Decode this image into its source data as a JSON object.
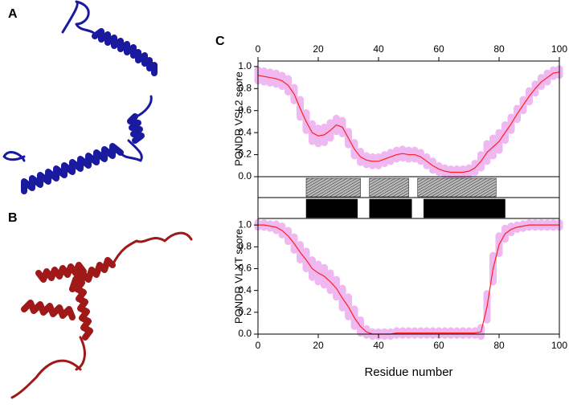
{
  "panel_labels": [
    "A",
    "B",
    "C"
  ],
  "chart_data": [
    {
      "type": "line",
      "ylabel": "PONDR VSL2 score",
      "xaxis": "top",
      "xlim": [
        0,
        100
      ],
      "ylim": [
        0,
        1.05
      ],
      "xticks": [
        0,
        20,
        40,
        60,
        80,
        100
      ],
      "yticks": [
        {
          "value": 0,
          "label": "0.0"
        },
        0.2,
        0.4,
        0.6,
        0.8,
        {
          "value": 1,
          "label": "1.0"
        }
      ],
      "color": "#ff2020",
      "band_color": "#f0b8f0",
      "x": [
        0,
        2,
        4,
        6,
        8,
        10,
        12,
        14,
        16,
        18,
        20,
        22,
        24,
        26,
        28,
        30,
        32,
        34,
        36,
        38,
        40,
        42,
        44,
        46,
        48,
        50,
        52,
        54,
        56,
        58,
        60,
        62,
        64,
        66,
        68,
        70,
        72,
        74,
        76,
        78,
        80,
        82,
        84,
        86,
        88,
        90,
        92,
        94,
        96,
        98,
        100
      ],
      "values": [
        0.92,
        0.91,
        0.9,
        0.89,
        0.87,
        0.83,
        0.75,
        0.62,
        0.5,
        0.4,
        0.37,
        0.38,
        0.42,
        0.47,
        0.45,
        0.35,
        0.25,
        0.18,
        0.15,
        0.14,
        0.14,
        0.16,
        0.18,
        0.2,
        0.21,
        0.2,
        0.2,
        0.18,
        0.14,
        0.1,
        0.07,
        0.05,
        0.04,
        0.04,
        0.04,
        0.05,
        0.08,
        0.14,
        0.22,
        0.27,
        0.32,
        0.4,
        0.48,
        0.57,
        0.65,
        0.73,
        0.8,
        0.86,
        0.9,
        0.94,
        0.95
      ],
      "errors": [
        0.05,
        0.05,
        0.05,
        0.05,
        0.05,
        0.06,
        0.06,
        0.08,
        0.08,
        0.08,
        0.07,
        0.07,
        0.07,
        0.06,
        0.06,
        0.06,
        0.06,
        0.05,
        0.04,
        0.04,
        0.04,
        0.04,
        0.04,
        0.04,
        0.04,
        0.04,
        0.04,
        0.04,
        0.04,
        0.04,
        0.03,
        0.03,
        0.03,
        0.03,
        0.03,
        0.03,
        0.04,
        0.06,
        0.08,
        0.08,
        0.08,
        0.07,
        0.06,
        0.05,
        0.05,
        0.05,
        0.04,
        0.04,
        0.04,
        0.03,
        0.03
      ]
    },
    {
      "type": "segments",
      "xlim": [
        0,
        100
      ],
      "rows": [
        {
          "fill": "hatched",
          "ranges": [
            [
              16,
              34
            ],
            [
              37,
              50
            ],
            [
              53,
              79
            ]
          ]
        },
        {
          "fill": "#000000",
          "ranges": [
            [
              16,
              33
            ],
            [
              37,
              51
            ],
            [
              55,
              82
            ]
          ]
        }
      ]
    },
    {
      "type": "line",
      "ylabel": "PONDR VLXT score",
      "xlabel": "Residue number",
      "xaxis": "bottom",
      "xlim": [
        0,
        100
      ],
      "ylim": [
        0,
        1.06
      ],
      "xticks": [
        0,
        20,
        40,
        60,
        80,
        100
      ],
      "yticks": [
        {
          "value": 0,
          "label": "0.0"
        },
        0.2,
        0.4,
        0.6,
        0.8,
        {
          "value": 1,
          "label": "1.0"
        }
      ],
      "color": "#ff2020",
      "band_color": "#f0b8f0",
      "x": [
        0,
        2,
        4,
        6,
        8,
        10,
        12,
        14,
        16,
        18,
        20,
        22,
        24,
        26,
        28,
        30,
        32,
        34,
        36,
        38,
        40,
        42,
        44,
        46,
        48,
        50,
        52,
        54,
        56,
        58,
        60,
        62,
        64,
        66,
        68,
        70,
        72,
        74,
        76,
        78,
        80,
        82,
        84,
        86,
        88,
        90,
        92,
        94,
        96,
        98,
        100
      ],
      "values": [
        1,
        1,
        0.99,
        0.98,
        0.95,
        0.9,
        0.83,
        0.75,
        0.68,
        0.6,
        0.56,
        0.53,
        0.48,
        0.42,
        0.33,
        0.25,
        0.15,
        0.07,
        0.02,
        0,
        0,
        0,
        0,
        0.01,
        0.01,
        0.01,
        0.01,
        0.01,
        0.01,
        0.01,
        0.01,
        0.01,
        0.01,
        0.01,
        0.01,
        0.01,
        0.01,
        0.02,
        0.25,
        0.6,
        0.82,
        0.92,
        0.96,
        0.98,
        0.99,
        1,
        1,
        1,
        1,
        1,
        1
      ],
      "errors": [
        0.02,
        0.02,
        0.02,
        0.03,
        0.04,
        0.05,
        0.06,
        0.07,
        0.08,
        0.08,
        0.08,
        0.08,
        0.08,
        0.08,
        0.09,
        0.09,
        0.08,
        0.06,
        0.03,
        0.02,
        0.02,
        0.02,
        0.02,
        0.02,
        0.02,
        0.02,
        0.02,
        0.02,
        0.02,
        0.02,
        0.02,
        0.02,
        0.02,
        0.02,
        0.02,
        0.02,
        0.02,
        0.04,
        0.12,
        0.12,
        0.08,
        0.05,
        0.03,
        0.02,
        0.02,
        0.02,
        0.02,
        0.02,
        0.02,
        0.02,
        0.02
      ]
    }
  ]
}
